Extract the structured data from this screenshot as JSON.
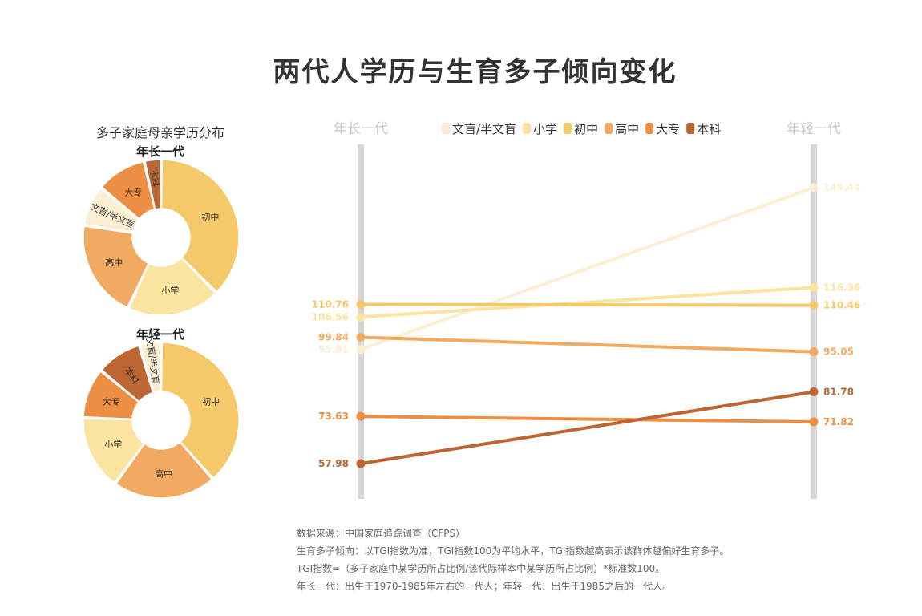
{
  "title": "两代人学历与生育多子倾向变化",
  "pie_panel": {
    "title": "多子家庭母亲学历分布",
    "older_title": "年长一代",
    "younger_title": "年轻一代"
  },
  "colors": {
    "文盲/半文盲": "#fbeed2",
    "小学": "#fbe3a0",
    "初中": "#f5c96a",
    "高中": "#f2a962",
    "大专": "#ec8f44",
    "本科": "#bd6533",
    "axis": "#d6d6d6",
    "axis_label": "#c8c8c8"
  },
  "chart_data": [
    {
      "type": "pie",
      "title": "年长一代",
      "categories": [
        "初中",
        "小学",
        "高中",
        "文盲/半文盲",
        "大专",
        "本科"
      ],
      "values": [
        37.5,
        19.5,
        20.5,
        8.5,
        10.5,
        3.5
      ],
      "labels": [
        "初中",
        "小学",
        "高中",
        "文盲/半文盲",
        "大专",
        "本科"
      ]
    },
    {
      "type": "pie",
      "title": "年轻一代",
      "categories": [
        "初中",
        "高中",
        "小学",
        "大专",
        "本科",
        "文盲/半文盲"
      ],
      "values": [
        38.5,
        21.5,
        15.5,
        10.5,
        9.5,
        4.5
      ],
      "labels": [
        "初中",
        "高中",
        "小学",
        "大专",
        "本科",
        "文盲/半文盲"
      ]
    },
    {
      "type": "line",
      "x": [
        "年长一代",
        "年轻一代"
      ],
      "legend": [
        "文盲/半文盲",
        "小学",
        "初中",
        "高中",
        "大专",
        "本科"
      ],
      "legend_position": "top-center",
      "ylim": [
        40,
        160
      ],
      "series": [
        {
          "name": "文盲/半文盲",
          "values": [
            95.81,
            149.44
          ],
          "labels": [
            "95.81",
            "149.44"
          ]
        },
        {
          "name": "小学",
          "values": [
            106.56,
            116.36
          ],
          "labels": [
            "106.56",
            "116.36"
          ]
        },
        {
          "name": "初中",
          "values": [
            110.76,
            110.46
          ],
          "labels": [
            "110.76",
            "110.46"
          ]
        },
        {
          "name": "高中",
          "values": [
            99.84,
            95.05
          ],
          "labels": [
            "99.84",
            "95.05"
          ]
        },
        {
          "name": "大专",
          "values": [
            73.63,
            71.82
          ],
          "labels": [
            "73.63",
            "71.82"
          ]
        },
        {
          "name": "本科",
          "values": [
            57.98,
            81.78
          ],
          "labels": [
            "57.98",
            "81.78"
          ]
        }
      ]
    }
  ],
  "notes": [
    "数据来源：中国家庭追踪调查（CFPS）",
    "生育多子倾向：以TGI指数为准，TGI指数100为平均水平，TGI指数越高表示该群体越偏好生育多子。",
    "TGI指数=（多子家庭中某学历所占比例/该代际样本中某学历所占比例）*标准数100。",
    "年长一代：出生于1970-1985年左右的一代人；年轻一代：出生于1985之后的一代人。"
  ]
}
